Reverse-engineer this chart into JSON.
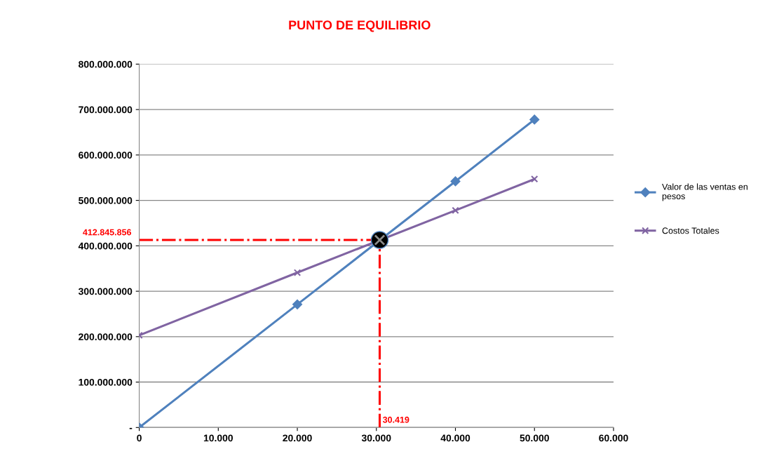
{
  "chart_data": {
    "type": "line",
    "title": "PUNTO DE EQUILIBRIO",
    "series": [
      {
        "name": "Valor de las ventas en\npesos",
        "color": "#4f81bd",
        "marker": "diamond",
        "x": [
          0,
          20000,
          40000,
          50000
        ],
        "values": [
          0,
          271000000,
          542000000,
          678000000
        ]
      },
      {
        "name": "Costos Totales",
        "color": "#8064a2",
        "marker": "cross",
        "x": [
          0,
          20000,
          40000,
          50000
        ],
        "values": [
          203000000,
          341000000,
          478000000,
          547000000
        ]
      },
      {
        "type": "scatter",
        "color": "#000000",
        "marker": "circle",
        "x": [
          30419
        ],
        "values": [
          412845856
        ]
      }
    ],
    "xlim": [
      0,
      60000
    ],
    "xticks": [
      0,
      {
        "value": 10000,
        "label": "10.000"
      },
      {
        "value": 20000,
        "label": "20.000"
      },
      {
        "value": 30000,
        "label": "30.000"
      },
      {
        "value": 40000,
        "label": "40.000"
      },
      {
        "value": 50000,
        "label": "50.000"
      },
      {
        "value": 60000,
        "label": "60.000"
      }
    ],
    "ylim": [
      0,
      800000000
    ],
    "yticks": [
      {
        "value": 0,
        "label": "-"
      },
      {
        "value": 100000000,
        "label": "100.000.000"
      },
      {
        "value": 200000000,
        "label": "200.000.000"
      },
      {
        "value": 300000000,
        "label": "300.000.000"
      },
      {
        "value": 400000000,
        "label": "400.000.000"
      },
      {
        "value": 500000000,
        "label": "500.000.000"
      },
      {
        "value": 600000000,
        "label": "600.000.000"
      },
      {
        "value": 700000000,
        "label": "700.000.000"
      },
      {
        "value": 800000000,
        "label": "800.000.000"
      }
    ],
    "ref_lines": [
      {
        "axis": "y",
        "value": 412845856,
        "label": "412.845.856",
        "color": "#ff0000",
        "line_style": "dashdot"
      },
      {
        "axis": "x",
        "value": 30419,
        "label": "30.419",
        "color": "#ff0000",
        "line_style": "dashdot"
      }
    ],
    "grid": "y",
    "legend": "right"
  }
}
